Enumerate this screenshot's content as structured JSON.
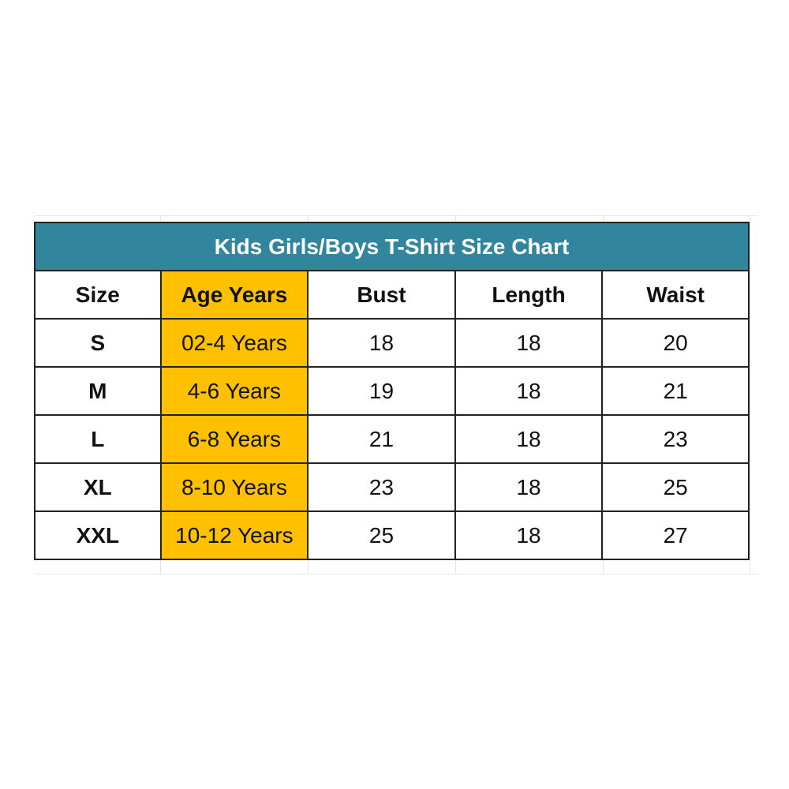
{
  "title": "Kids Girls/Boys T-Shirt Size Chart",
  "colors": {
    "title_bg": "#31859c",
    "age_column_bg": "#ffc000"
  },
  "columns": [
    "Size",
    "Age Years",
    "Bust",
    "Length",
    "Waist"
  ],
  "rows": [
    [
      "S",
      "02-4 Years",
      "18",
      "18",
      "20"
    ],
    [
      "M",
      "4-6 Years",
      "19",
      "18",
      "21"
    ],
    [
      "L",
      "6-8 Years",
      "21",
      "18",
      "23"
    ],
    [
      "XL",
      "8-10 Years",
      "23",
      "18",
      "25"
    ],
    [
      "XXL",
      "10-12 Years",
      "25",
      "18",
      "27"
    ]
  ]
}
